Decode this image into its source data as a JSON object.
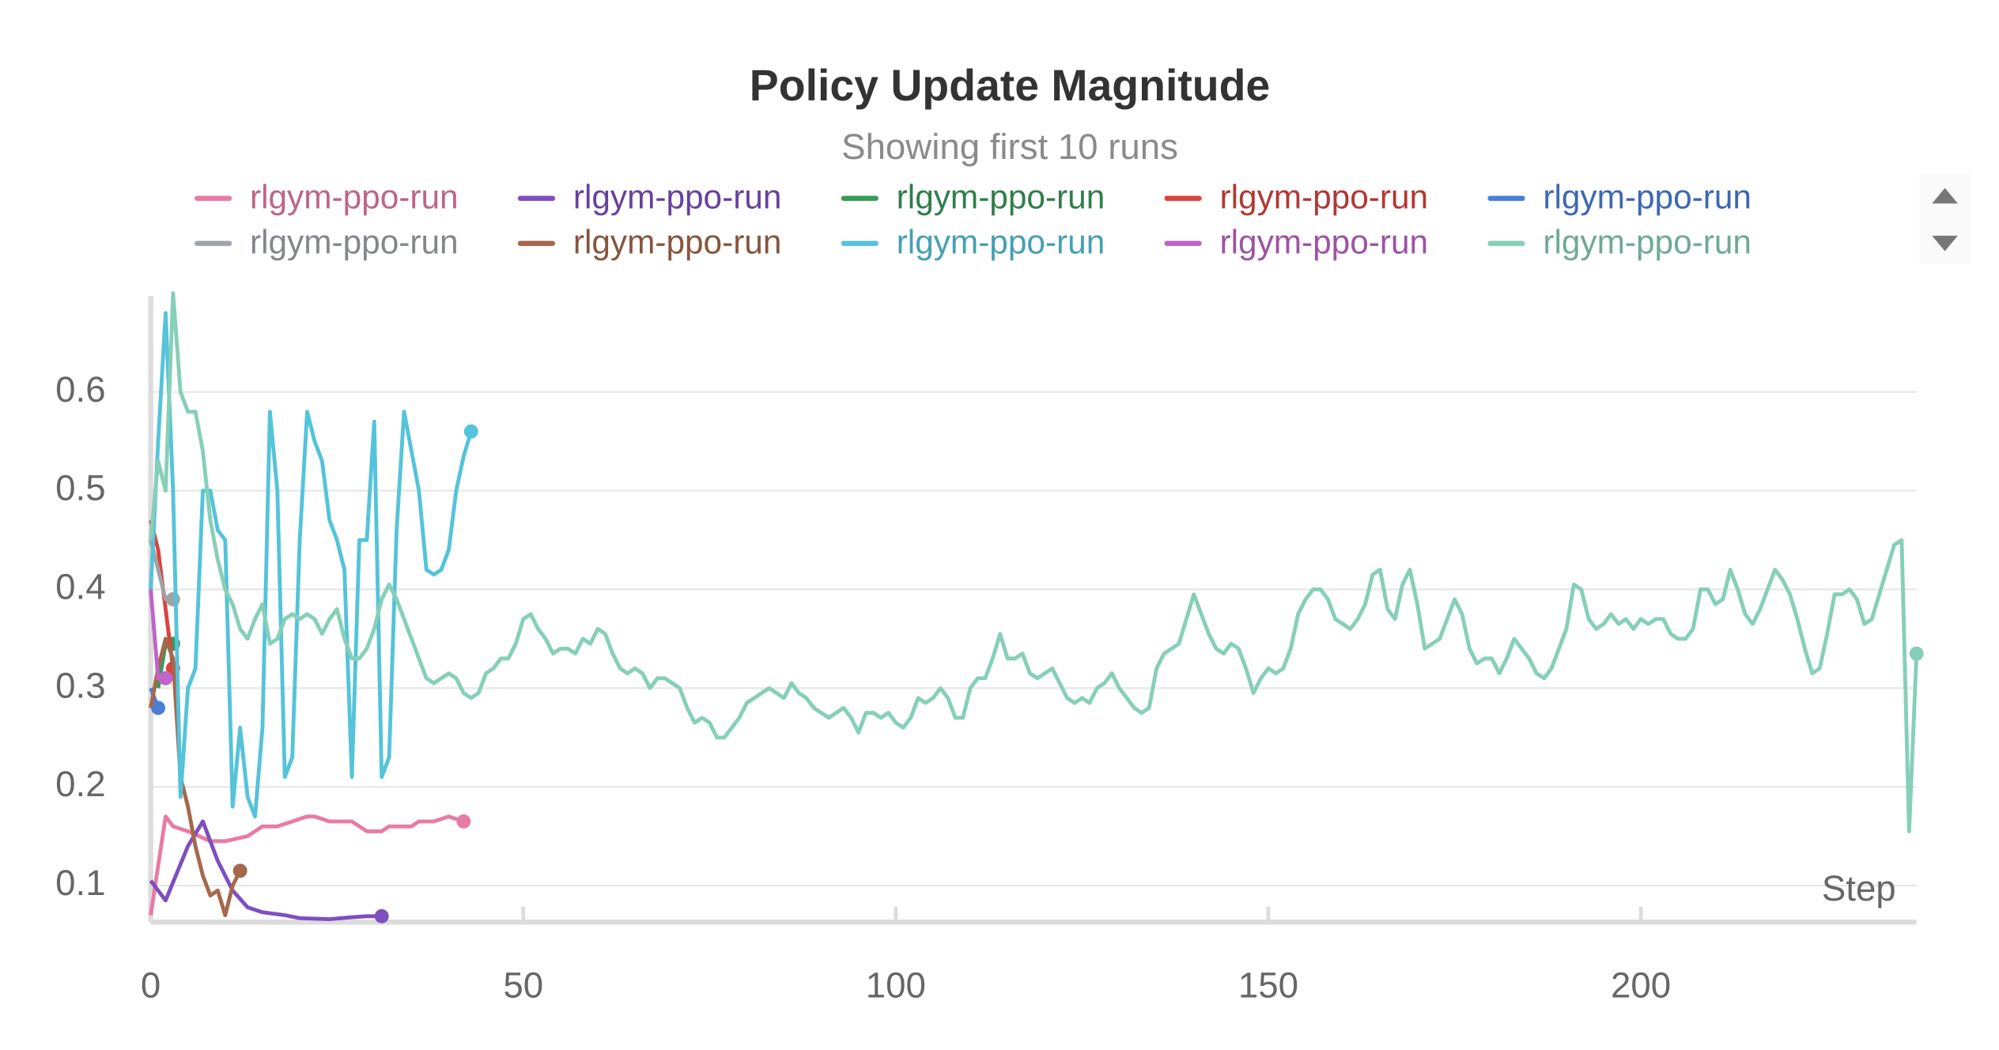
{
  "chart_data": {
    "type": "line",
    "title": "Policy Update Magnitude",
    "subtitle": "Showing first 10 runs",
    "x_label": "Step",
    "xlim": [
      0,
      237
    ],
    "ylim": [
      0.063,
      0.697
    ],
    "xticks": [
      0,
      50,
      100,
      150,
      200
    ],
    "yticks": [
      0.1,
      0.2,
      0.3,
      0.4,
      0.5,
      0.6
    ],
    "grid": true,
    "legend": "top",
    "series": [
      {
        "name": "rlgym-ppo-run",
        "color": "#e87ba4",
        "x": [
          0,
          2,
          3,
          5,
          8,
          10,
          13,
          15,
          17,
          19,
          21,
          22,
          24,
          27,
          28,
          29,
          31,
          32,
          35,
          36,
          38,
          40,
          42
        ],
        "values": [
          0.07,
          0.17,
          0.16,
          0.155,
          0.145,
          0.145,
          0.15,
          0.16,
          0.16,
          0.165,
          0.17,
          0.17,
          0.165,
          0.165,
          0.16,
          0.155,
          0.155,
          0.16,
          0.16,
          0.165,
          0.165,
          0.17,
          0.165
        ]
      },
      {
        "name": "rlgym-ppo-run",
        "color": "#7e4fbf",
        "x": [
          0,
          2,
          5,
          7,
          9,
          11,
          13,
          15,
          18,
          20,
          24,
          27,
          29,
          31
        ],
        "values": [
          0.105,
          0.085,
          0.14,
          0.165,
          0.125,
          0.095,
          0.078,
          0.073,
          0.07,
          0.067,
          0.066,
          0.068,
          0.069,
          0.069
        ]
      },
      {
        "name": "rlgym-ppo-run",
        "color": "#3a9a5b",
        "x": [
          1,
          2,
          3
        ],
        "values": [
          0.3,
          0.345,
          0.345
        ]
      },
      {
        "name": "rlgym-ppo-run",
        "color": "#d9443f",
        "x": [
          0,
          1,
          2,
          3
        ],
        "values": [
          0.47,
          0.44,
          0.38,
          0.32
        ]
      },
      {
        "name": "rlgym-ppo-run",
        "color": "#4a7fd8",
        "x": [
          0,
          1
        ],
        "values": [
          0.3,
          0.28
        ]
      },
      {
        "name": "rlgym-ppo-run",
        "color": "#a0a4a8",
        "x": [
          0,
          1,
          2,
          3
        ],
        "values": [
          0.45,
          0.42,
          0.39,
          0.39
        ]
      },
      {
        "name": "rlgym-ppo-run",
        "color": "#a5684a",
        "x": [
          0,
          1,
          2,
          3,
          4,
          5,
          6,
          7,
          8,
          9,
          10,
          11,
          12
        ],
        "values": [
          0.28,
          0.32,
          0.35,
          0.33,
          0.21,
          0.18,
          0.14,
          0.11,
          0.09,
          0.095,
          0.07,
          0.1,
          0.115
        ]
      },
      {
        "name": "rlgym-ppo-run",
        "color": "#55c3da",
        "x": [
          0,
          1,
          2,
          3,
          4,
          5,
          6,
          7,
          8,
          9,
          10,
          11,
          12,
          13,
          14,
          15,
          16,
          17,
          18,
          19,
          20,
          21,
          22,
          23,
          24,
          25,
          26,
          27,
          28,
          29,
          30,
          31,
          32,
          33,
          34,
          35,
          36,
          37,
          38,
          39,
          40,
          41,
          42,
          43
        ],
        "values": [
          0.4,
          0.55,
          0.68,
          0.5,
          0.19,
          0.3,
          0.32,
          0.5,
          0.5,
          0.46,
          0.45,
          0.18,
          0.26,
          0.19,
          0.17,
          0.26,
          0.58,
          0.5,
          0.21,
          0.23,
          0.45,
          0.58,
          0.55,
          0.53,
          0.47,
          0.45,
          0.42,
          0.21,
          0.45,
          0.45,
          0.57,
          0.21,
          0.23,
          0.46,
          0.58,
          0.54,
          0.5,
          0.42,
          0.415,
          0.42,
          0.44,
          0.5,
          0.535,
          0.56
        ]
      },
      {
        "name": "rlgym-ppo-run",
        "color": "#c064c9",
        "x": [
          0,
          1,
          2
        ],
        "values": [
          0.4,
          0.31,
          0.31
        ]
      },
      {
        "name": "rlgym-ppo-run",
        "color": "#86cfb8",
        "x": [
          0,
          1,
          2,
          3,
          4,
          5,
          6,
          7,
          8,
          9,
          10,
          11,
          12,
          13,
          14,
          15,
          16,
          17,
          18,
          19,
          20,
          21,
          22,
          23,
          24,
          25,
          26,
          27,
          28,
          29,
          30,
          31,
          32,
          33,
          34,
          35,
          36,
          37,
          38,
          39,
          40,
          41,
          42,
          43,
          44,
          45,
          46,
          47,
          48,
          49,
          50,
          51,
          52,
          53,
          54,
          55,
          56,
          57,
          58,
          59,
          60,
          61,
          62,
          63,
          64,
          65,
          66,
          67,
          68,
          69,
          70,
          71,
          72,
          73,
          74,
          75,
          76,
          77,
          78,
          79,
          80,
          81,
          82,
          83,
          84,
          85,
          86,
          87,
          88,
          89,
          90,
          91,
          92,
          93,
          94,
          95,
          96,
          97,
          98,
          99,
          100,
          101,
          102,
          103,
          104,
          105,
          106,
          107,
          108,
          109,
          110,
          111,
          112,
          113,
          114,
          115,
          116,
          117,
          118,
          119,
          120,
          121,
          122,
          123,
          124,
          125,
          126,
          127,
          128,
          129,
          130,
          131,
          132,
          133,
          134,
          135,
          136,
          137,
          138,
          139,
          140,
          141,
          142,
          143,
          144,
          145,
          146,
          147,
          148,
          149,
          150,
          151,
          152,
          153,
          154,
          155,
          156,
          157,
          158,
          159,
          160,
          161,
          162,
          163,
          164,
          165,
          166,
          167,
          168,
          169,
          170,
          171,
          172,
          173,
          174,
          175,
          176,
          177,
          178,
          179,
          180,
          181,
          182,
          183,
          184,
          185,
          186,
          187,
          188,
          189,
          190,
          191,
          192,
          193,
          194,
          195,
          196,
          197,
          198,
          199,
          200,
          201,
          202,
          203,
          204,
          205,
          206,
          207,
          208,
          209,
          210,
          211,
          212,
          213,
          214,
          215,
          216,
          217,
          218,
          219,
          220,
          221,
          222,
          223,
          224,
          225,
          226,
          227,
          228,
          229,
          230,
          231,
          232,
          233,
          234,
          235,
          236,
          237
        ],
        "values": [
          0.45,
          0.53,
          0.5,
          0.7,
          0.6,
          0.58,
          0.58,
          0.54,
          0.47,
          0.43,
          0.4,
          0.385,
          0.36,
          0.35,
          0.37,
          0.385,
          0.345,
          0.35,
          0.37,
          0.375,
          0.37,
          0.375,
          0.37,
          0.355,
          0.37,
          0.38,
          0.35,
          0.33,
          0.33,
          0.34,
          0.36,
          0.39,
          0.405,
          0.39,
          0.37,
          0.35,
          0.33,
          0.31,
          0.305,
          0.31,
          0.315,
          0.31,
          0.295,
          0.29,
          0.295,
          0.315,
          0.32,
          0.33,
          0.33,
          0.345,
          0.37,
          0.375,
          0.36,
          0.35,
          0.335,
          0.34,
          0.34,
          0.335,
          0.35,
          0.345,
          0.36,
          0.355,
          0.335,
          0.32,
          0.315,
          0.32,
          0.315,
          0.3,
          0.31,
          0.31,
          0.305,
          0.3,
          0.28,
          0.265,
          0.27,
          0.265,
          0.25,
          0.25,
          0.26,
          0.27,
          0.285,
          0.29,
          0.295,
          0.3,
          0.295,
          0.29,
          0.305,
          0.295,
          0.29,
          0.28,
          0.275,
          0.27,
          0.275,
          0.28,
          0.27,
          0.255,
          0.275,
          0.275,
          0.27,
          0.275,
          0.265,
          0.26,
          0.27,
          0.29,
          0.285,
          0.29,
          0.3,
          0.29,
          0.27,
          0.27,
          0.3,
          0.31,
          0.31,
          0.33,
          0.355,
          0.33,
          0.33,
          0.335,
          0.315,
          0.31,
          0.315,
          0.32,
          0.305,
          0.29,
          0.285,
          0.29,
          0.285,
          0.3,
          0.305,
          0.315,
          0.3,
          0.29,
          0.28,
          0.275,
          0.28,
          0.32,
          0.335,
          0.34,
          0.345,
          0.37,
          0.395,
          0.375,
          0.355,
          0.34,
          0.335,
          0.345,
          0.34,
          0.32,
          0.295,
          0.31,
          0.32,
          0.315,
          0.32,
          0.34,
          0.375,
          0.39,
          0.4,
          0.4,
          0.39,
          0.37,
          0.365,
          0.36,
          0.37,
          0.385,
          0.415,
          0.42,
          0.38,
          0.37,
          0.405,
          0.42,
          0.385,
          0.34,
          0.345,
          0.35,
          0.37,
          0.39,
          0.375,
          0.34,
          0.325,
          0.33,
          0.33,
          0.315,
          0.33,
          0.35,
          0.34,
          0.33,
          0.315,
          0.31,
          0.32,
          0.34,
          0.36,
          0.405,
          0.4,
          0.37,
          0.36,
          0.365,
          0.375,
          0.365,
          0.37,
          0.36,
          0.37,
          0.365,
          0.37,
          0.37,
          0.355,
          0.35,
          0.35,
          0.36,
          0.4,
          0.4,
          0.385,
          0.39,
          0.42,
          0.4,
          0.375,
          0.365,
          0.38,
          0.4,
          0.42,
          0.41,
          0.395,
          0.37,
          0.34,
          0.315,
          0.32,
          0.355,
          0.395,
          0.395,
          0.4,
          0.39,
          0.365,
          0.37,
          0.395,
          0.42,
          0.445,
          0.45,
          0.155,
          0.335
        ]
      }
    ]
  }
}
